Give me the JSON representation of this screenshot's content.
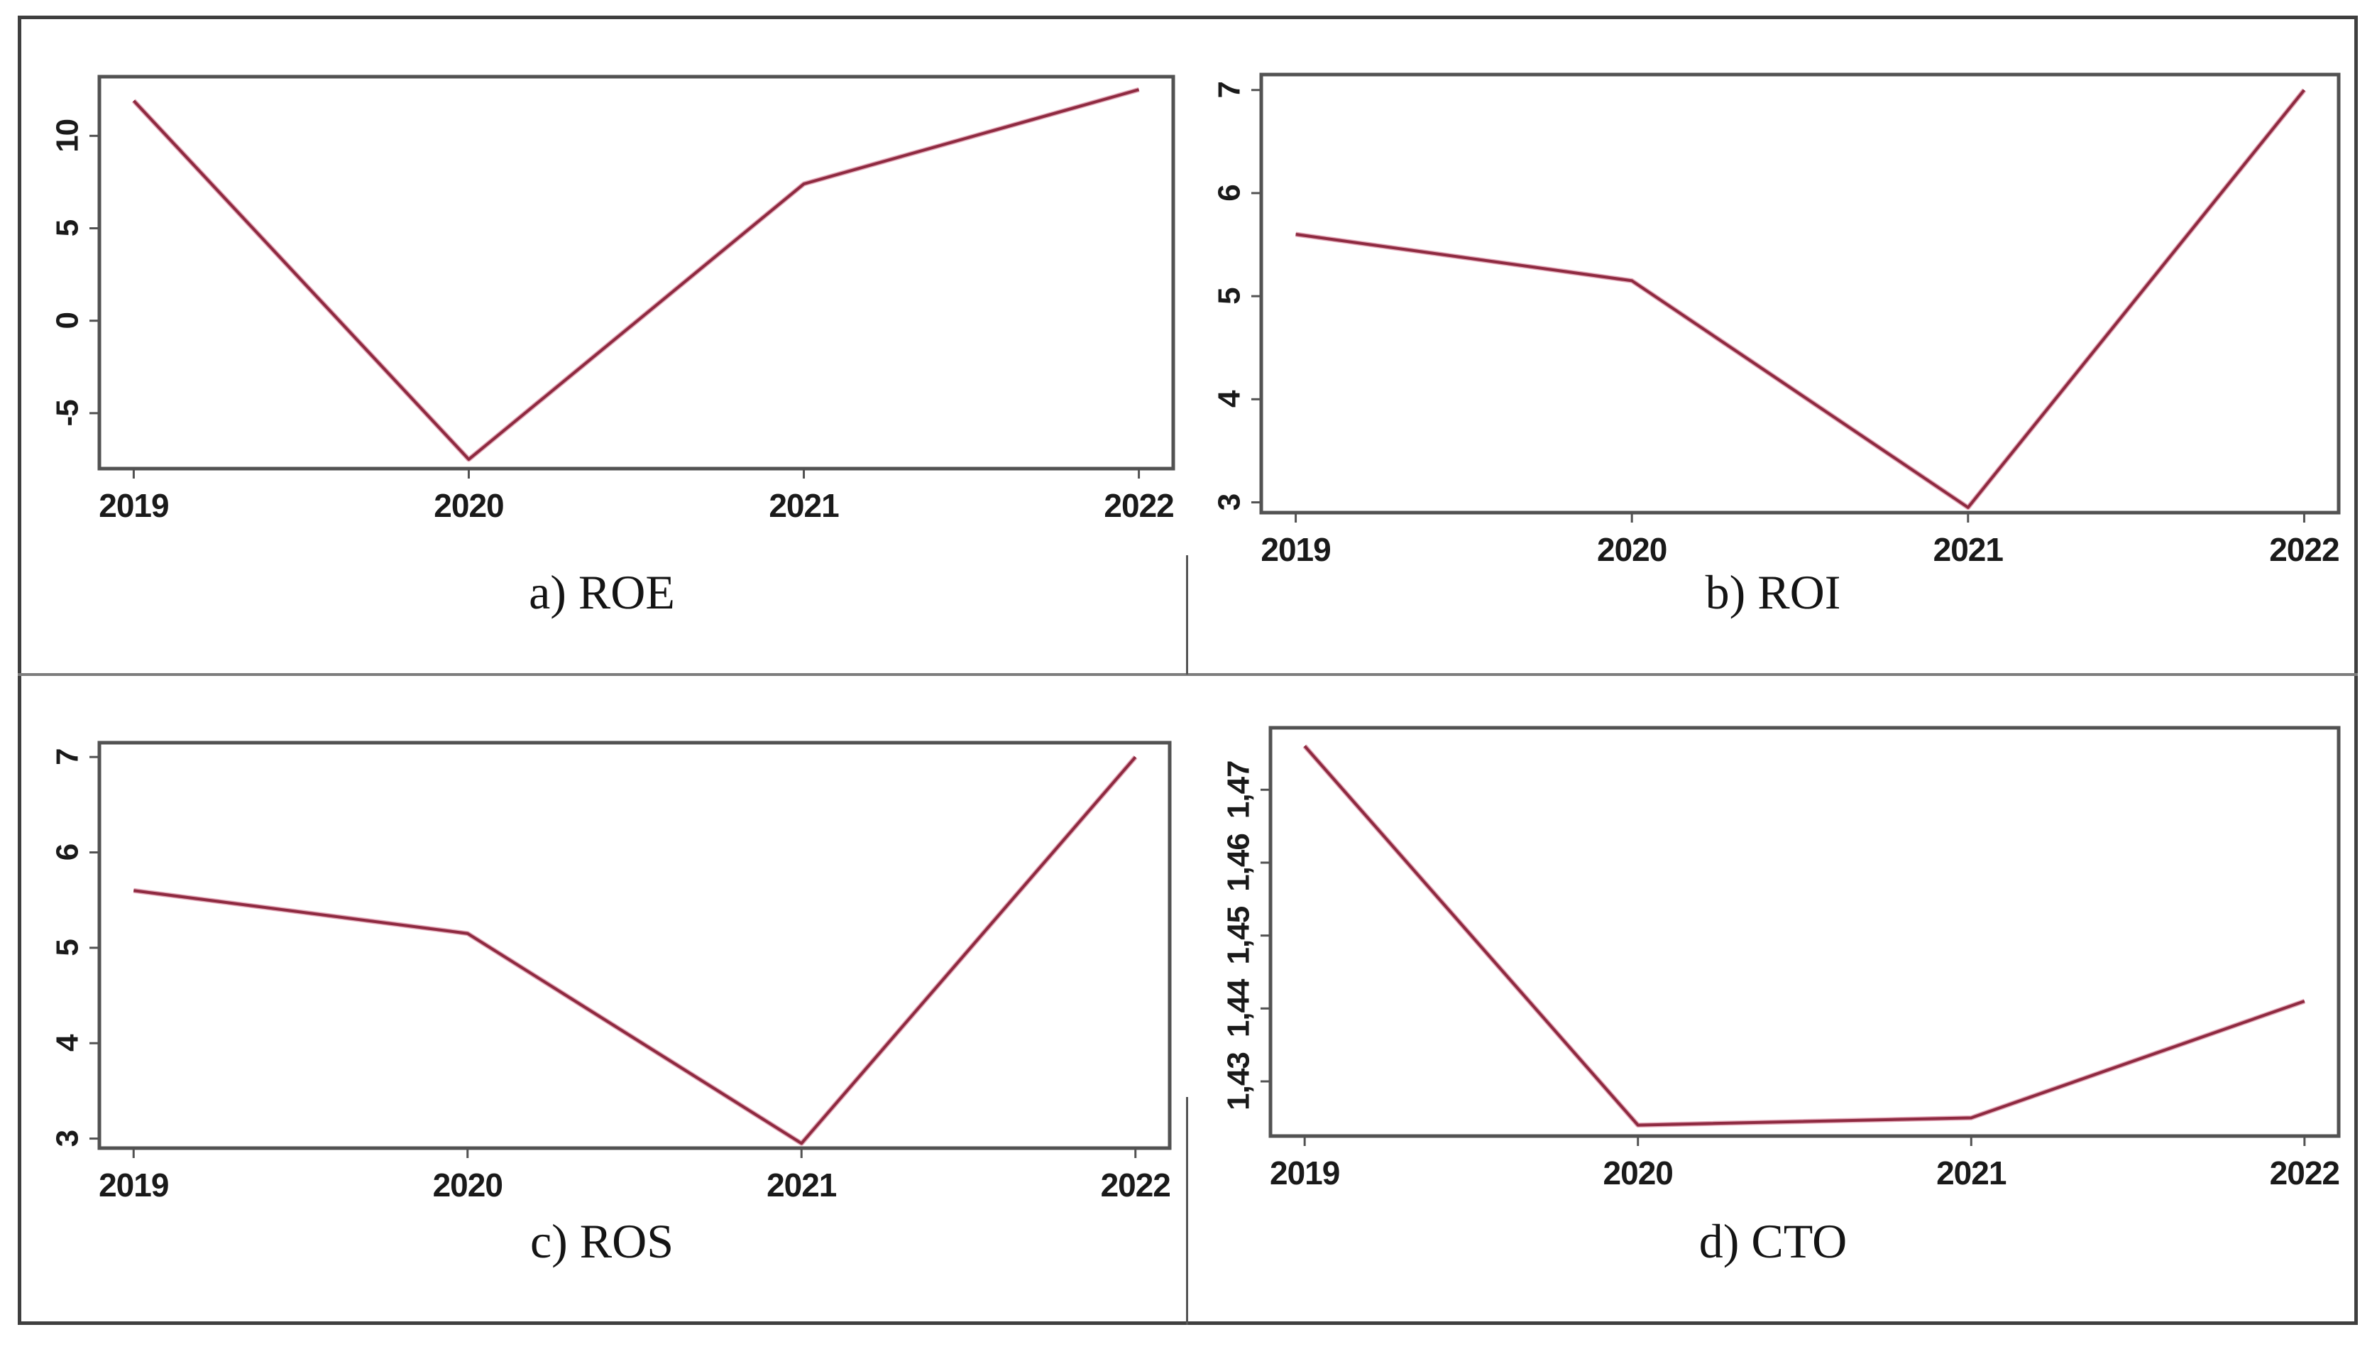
{
  "figure": {
    "background": "#ffffff",
    "border_color": "#3f3f3f",
    "divider_color": "#7d7d7d"
  },
  "style": {
    "line_color": "#8e2a40",
    "line_halo_color": "#e3a8b8",
    "axis_color": "#525252",
    "tick_label_color": "#1a1a1a"
  },
  "chart_data": [
    {
      "id": "roe",
      "type": "line",
      "title": "a) ROE",
      "categories": [
        "2019",
        "2020",
        "2021",
        "2022"
      ],
      "values": [
        11.9,
        -7.5,
        7.4,
        12.5
      ],
      "yticks": [
        10,
        5,
        0,
        -5
      ],
      "ytick_labels": [
        "10",
        "5",
        "0",
        "-5"
      ],
      "ylim": [
        -8.0,
        13.2
      ],
      "xlabel": "",
      "ylabel": "",
      "grid": false,
      "legend": "none"
    },
    {
      "id": "roi",
      "type": "line",
      "title": "b) ROI",
      "categories": [
        "2019",
        "2020",
        "2021",
        "2022"
      ],
      "values": [
        5.6,
        5.15,
        2.95,
        7.0
      ],
      "yticks": [
        7,
        6,
        5,
        4,
        3
      ],
      "ytick_labels": [
        "7",
        "6",
        "5",
        "4",
        "3"
      ],
      "ylim": [
        2.9,
        7.15
      ],
      "xlabel": "",
      "ylabel": "",
      "grid": false,
      "legend": "none"
    },
    {
      "id": "ros",
      "type": "line",
      "title": "c) ROS",
      "categories": [
        "2019",
        "2020",
        "2021",
        "2022"
      ],
      "values": [
        5.6,
        5.15,
        2.95,
        7.0
      ],
      "yticks": [
        7,
        6,
        5,
        4,
        3
      ],
      "ytick_labels": [
        "7",
        "6",
        "5",
        "4",
        "3"
      ],
      "ylim": [
        2.9,
        7.15
      ],
      "xlabel": "",
      "ylabel": "",
      "grid": false,
      "legend": "none"
    },
    {
      "id": "cto",
      "type": "line",
      "title": "d) CTO",
      "categories": [
        "2019",
        "2020",
        "2021",
        "2022"
      ],
      "values": [
        1.476,
        1.424,
        1.425,
        1.441
      ],
      "yticks": [
        1.47,
        1.46,
        1.45,
        1.44,
        1.43
      ],
      "ytick_labels": [
        "1,47",
        "1,46",
        "1,45",
        "1,44",
        "1,43"
      ],
      "ylim": [
        1.4225,
        1.4785
      ],
      "xlabel": "",
      "ylabel": "",
      "grid": false,
      "legend": "none"
    }
  ]
}
